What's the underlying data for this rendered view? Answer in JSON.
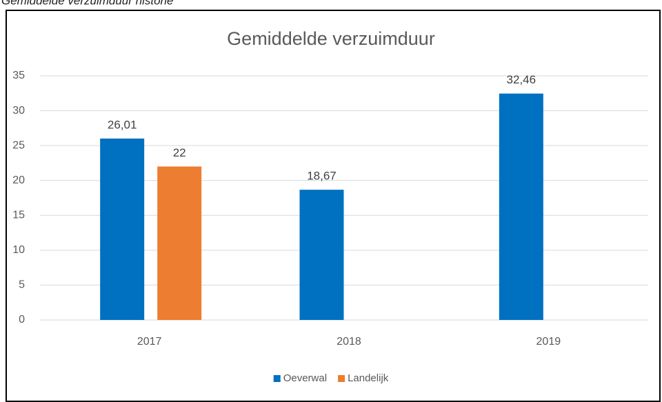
{
  "caption": "Gemiddelde verzuimduur historie",
  "chart_data": {
    "type": "bar",
    "title": "Gemiddelde verzuimduur",
    "categories": [
      "2017",
      "2018",
      "2019"
    ],
    "series": [
      {
        "name": "Oeverwal",
        "color": "#0070c0",
        "values": [
          26.01,
          18.67,
          32.46
        ],
        "value_labels": [
          "26,01",
          "18,67",
          "32,46"
        ]
      },
      {
        "name": "Landelijk",
        "color": "#ed7d31",
        "values": [
          22,
          null,
          null
        ],
        "value_labels": [
          "22",
          null,
          null
        ]
      }
    ],
    "ylim": [
      0,
      35
    ],
    "yticks": [
      0,
      5,
      10,
      15,
      20,
      25,
      30,
      35
    ],
    "grid": true,
    "legend": "bottom"
  }
}
